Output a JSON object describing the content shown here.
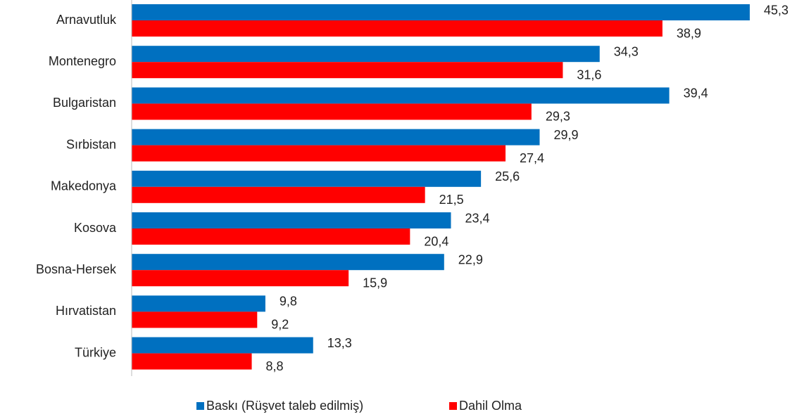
{
  "chart_data": {
    "type": "bar",
    "orientation": "horizontal",
    "categories": [
      "Arnavutluk",
      "Montenegro",
      "Bulgaristan",
      "Sırbistan",
      "Makedonya",
      "Kosova",
      "Bosna-Hersek",
      "Hırvatistan",
      "Türkiye"
    ],
    "series": [
      {
        "name": "Baskı (Rüşvet taleb edilmiş)",
        "color": "#0070c0",
        "values": [
          45.3,
          34.3,
          39.4,
          29.9,
          25.6,
          23.4,
          22.9,
          9.8,
          13.3
        ],
        "value_labels": [
          "45,3",
          "34,3",
          "39,4",
          "29,9",
          "25,6",
          "23,4",
          "22,9",
          "9,8",
          "13,3"
        ]
      },
      {
        "name": "Dahil Olma",
        "color": "#ff0000",
        "values": [
          38.9,
          31.6,
          29.3,
          27.4,
          21.5,
          20.4,
          15.9,
          9.2,
          8.8
        ],
        "value_labels": [
          "38,9",
          "31,6",
          "29,3",
          "27,4",
          "21,5",
          "20,4",
          "15,9",
          "9,2",
          "8,8"
        ]
      }
    ],
    "xlim": [
      0,
      50
    ],
    "legend": "bottom"
  }
}
